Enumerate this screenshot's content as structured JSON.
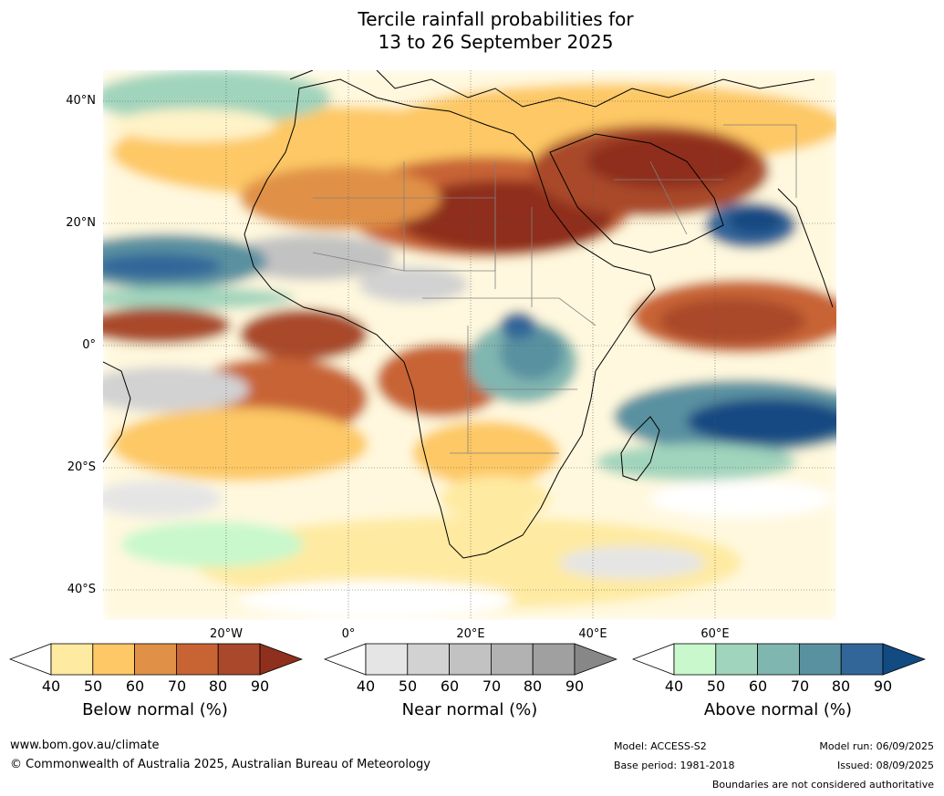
{
  "title": {
    "line1": "Tercile rainfall probabilities for",
    "line2": "13 to 26 September 2025"
  },
  "map": {
    "lat_labels": [
      "40°N",
      "20°N",
      "0°",
      "20°S",
      "40°S"
    ],
    "lon_labels": [
      "20°W",
      "0°",
      "20°E",
      "40°E",
      "60°E"
    ]
  },
  "colorbars": [
    {
      "key": "below",
      "title": "Below normal (%)",
      "ticks": [
        "40",
        "50",
        "60",
        "70",
        "80",
        "90"
      ],
      "colors": [
        "#ffffff",
        "#feeaa1",
        "#fdc865",
        "#e09147",
        "#c86334",
        "#a9482a",
        "#8f2f1d"
      ]
    },
    {
      "key": "near",
      "title": "Near normal (%)",
      "ticks": [
        "40",
        "50",
        "60",
        "70",
        "80",
        "90"
      ],
      "colors": [
        "#ffffff",
        "#e5e5e5",
        "#d2d2d2",
        "#c2c2c2",
        "#b2b2b2",
        "#a0a0a0",
        "#878787"
      ]
    },
    {
      "key": "above",
      "title": "Above normal (%)",
      "ticks": [
        "40",
        "50",
        "60",
        "70",
        "80",
        "90"
      ],
      "colors": [
        "#ffffff",
        "#c8f8cc",
        "#a0d4bc",
        "#80b6b0",
        "#5a91a0",
        "#326699",
        "#124a82"
      ]
    }
  ],
  "footer": {
    "website": "www.bom.gov.au/climate",
    "copyright": "© Commonwealth of Australia 2025, Australian Bureau of Meteorology",
    "model": "Model: ACCESS-S2",
    "base_period": "Base period: 1981-2018",
    "model_run": "Model run: 06/09/2025",
    "issued": "Issued: 08/09/2025",
    "boundaries_note": "Boundaries are not considered authoritative"
  }
}
